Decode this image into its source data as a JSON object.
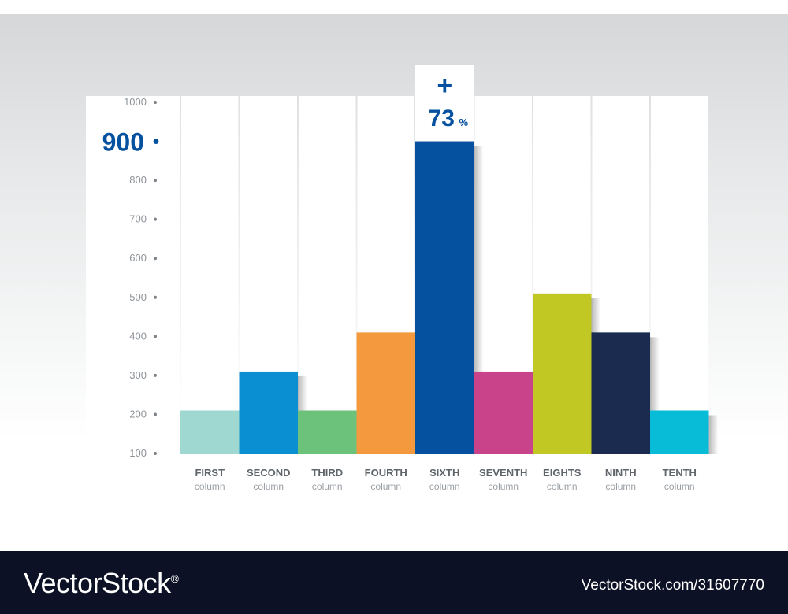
{
  "chart_data": {
    "type": "bar",
    "title": "",
    "xlabel": "",
    "ylabel": "",
    "ylim": [
      100,
      1000
    ],
    "yticks": [
      100,
      200,
      300,
      400,
      500,
      600,
      700,
      800,
      900,
      1000
    ],
    "highlight_tick": 900,
    "categories": [
      {
        "name": "FIRST",
        "sub": "column"
      },
      {
        "name": "SECOND",
        "sub": "column"
      },
      {
        "name": "THIRD",
        "sub": "column"
      },
      {
        "name": "FOURTH",
        "sub": "column"
      },
      {
        "name": "SIXTH",
        "sub": "column"
      },
      {
        "name": "SEVENTH",
        "sub": "column"
      },
      {
        "name": "EIGHTS",
        "sub": "column"
      },
      {
        "name": "NINTH",
        "sub": "column"
      },
      {
        "name": "TENTH",
        "sub": "column"
      }
    ],
    "values": [
      210,
      310,
      210,
      410,
      900,
      310,
      510,
      410,
      210
    ],
    "colors": [
      "#9ed8d1",
      "#0a8fd3",
      "#6cc17b",
      "#f5993e",
      "#05519f",
      "#c8438a",
      "#c2c823",
      "#1b2b50",
      "#08bcd8"
    ],
    "highlight_index": 4,
    "annotation": {
      "plus": "+",
      "value": "73",
      "unit": "%"
    },
    "grid": false,
    "legend": "none"
  },
  "watermark": {
    "brand": "VectorStock",
    "reg": "®",
    "id": "VectorStock.com/31607770"
  }
}
